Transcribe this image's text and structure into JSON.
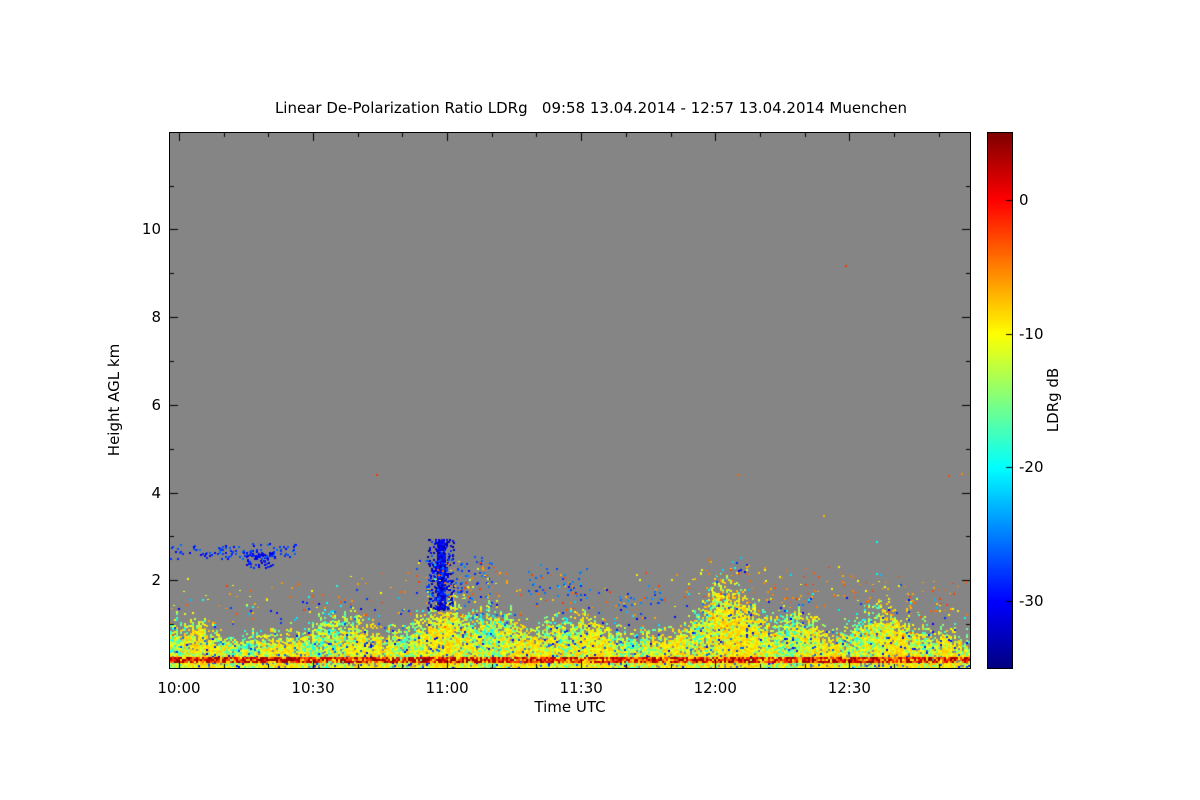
{
  "page": {
    "background": "#ffffff"
  },
  "chart_data": {
    "type": "heatmap",
    "title": "Linear De-Polarization Ratio LDRg   09:58 13.04.2014 - 12:57 13.04.2014 Muenchen",
    "xlabel": "Time UTC",
    "ylabel": "Height AGL km",
    "x_ticks": [
      "10:00",
      "10:30",
      "11:00",
      "11:30",
      "12:00",
      "12:30"
    ],
    "x_tick_minutes": [
      2,
      32,
      62,
      92,
      122,
      152
    ],
    "x_range_minutes": [
      0,
      179
    ],
    "y_ticks": [
      2,
      4,
      6,
      8,
      10
    ],
    "ylim": [
      0,
      12.2
    ],
    "grid": false,
    "no_data_color": "#858585",
    "colorbar": {
      "label": "LDRg dB",
      "ticks": [
        0,
        -10,
        -20,
        -30
      ],
      "range": [
        5,
        -35
      ],
      "colormap": "jet",
      "position": "right"
    },
    "features": {
      "description": "Speckled boundary-layer echoes (LDRg mostly -25 to -8 dB) below ~1.5 km over the full period, a red/orange high-LDR surface stripe near 0.2 km, a dark-blue low-LDR vertical streak near 11:00 between ~1.4 and 3 km, a dotted blue line near 2.7 km before 10:30, and isolated warm specks near 4.4 km and 9.2 km.",
      "layer_base_top_km": 1.0,
      "layer_bumps": [
        {
          "min": 30,
          "width": 9,
          "extra_km": 0.25
        },
        {
          "min": 62,
          "width": 5,
          "extra_km": 1.0
        },
        {
          "min": 70,
          "width": 9,
          "extra_km": 0.45
        },
        {
          "min": 95,
          "width": 7,
          "extra_km": 0.5
        },
        {
          "min": 126,
          "width": 8,
          "extra_km": 1.05
        },
        {
          "min": 141,
          "width": 6,
          "extra_km": 0.55
        },
        {
          "min": 160,
          "width": 8,
          "extra_km": 0.35
        }
      ],
      "yellow_patches": [
        {
          "min": 8,
          "width": 5
        },
        {
          "min": 25,
          "width": 5
        },
        {
          "min": 45,
          "width": 6
        },
        {
          "min": 61,
          "width": 7
        },
        {
          "min": 80,
          "width": 6
        },
        {
          "min": 95,
          "width": 5
        },
        {
          "min": 112,
          "width": 5
        },
        {
          "min": 127,
          "width": 8
        },
        {
          "min": 146,
          "width": 6
        },
        {
          "min": 163,
          "width": 6
        },
        {
          "min": 174,
          "width": 4
        }
      ],
      "surface_stripe_km": [
        0.13,
        0.24
      ],
      "blue_streak": {
        "min": 60.5,
        "km": [
          1.35,
          2.95
        ],
        "value": -31
      },
      "blue_dot_groups": [
        {
          "min": [
            0,
            28
          ],
          "km": [
            2.5,
            2.85
          ],
          "count": 110,
          "value": -28
        },
        {
          "min": [
            17,
            23
          ],
          "km": [
            2.3,
            2.65
          ],
          "count": 60,
          "value": -30
        },
        {
          "min": [
            55,
            72
          ],
          "km": [
            1.5,
            2.6
          ],
          "count": 80,
          "value": -27
        },
        {
          "min": [
            80,
            96
          ],
          "km": [
            1.6,
            2.4
          ],
          "count": 40,
          "value": -26
        },
        {
          "min": [
            100,
            110
          ],
          "km": [
            1.4,
            1.9
          ],
          "count": 25,
          "value": -26
        }
      ],
      "warm_dot_groups": [
        {
          "min": [
            0,
            179
          ],
          "km": [
            1.2,
            2.2
          ],
          "count": 150
        },
        {
          "min": [
            55,
            75
          ],
          "km": [
            1.6,
            2.5
          ],
          "count": 50
        },
        {
          "min": [
            115,
            155
          ],
          "km": [
            1.5,
            2.35
          ],
          "count": 70
        },
        {
          "min": [
            155,
            178
          ],
          "km": [
            1.3,
            2.0
          ],
          "count": 35
        }
      ],
      "specks": [
        {
          "min": 46,
          "km": 4.42,
          "value": -2
        },
        {
          "min": 127,
          "km": 4.42,
          "value": -4
        },
        {
          "min": 146,
          "km": 3.5,
          "value": -7
        },
        {
          "min": 151,
          "km": 9.2,
          "value": -2
        },
        {
          "min": 158,
          "km": 2.9,
          "value": -20
        },
        {
          "min": 174,
          "km": 4.4,
          "value": -3
        },
        {
          "min": 177,
          "km": 4.45,
          "value": -5
        }
      ]
    }
  }
}
